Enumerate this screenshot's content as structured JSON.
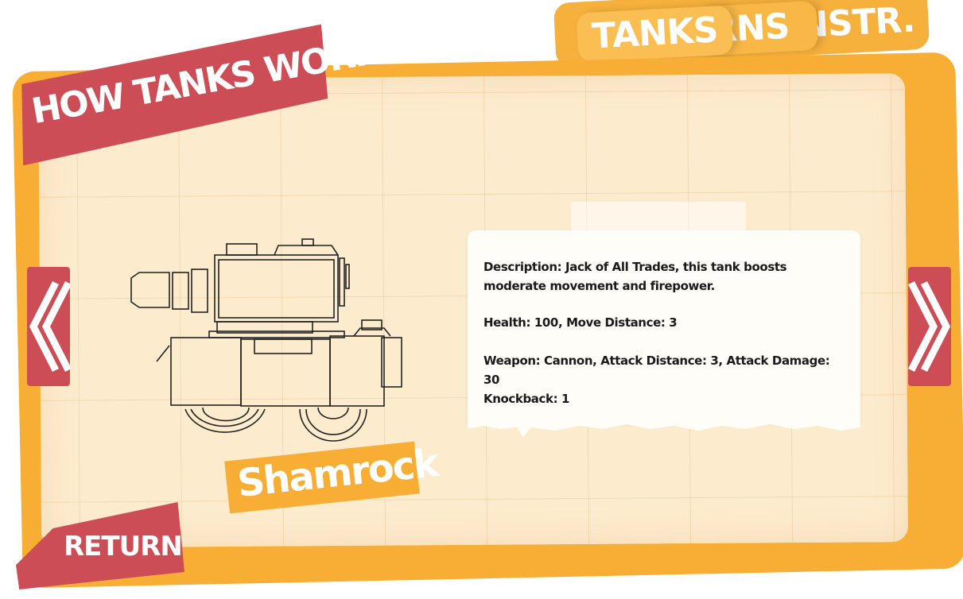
{
  "tabs": [
    {
      "label": "TANKS"
    },
    {
      "label": "RNS"
    },
    {
      "label": "NSTR."
    }
  ],
  "banner": {
    "title": "HOW TANKS WORK"
  },
  "tank": {
    "name": "Shamrock",
    "description": "Description: Jack of All Trades, this tank boosts moderate movement and firepower.",
    "health": "Health: 100, Move Distance: 3",
    "weapon": "Weapon: Cannon, Attack Distance: 3, Attack Damage: 30",
    "knockback": "Knockback: 1"
  },
  "nav": {
    "return_label": "RETURN",
    "prev_icon": "double-chevron-left-icon",
    "next_icon": "double-chevron-right-icon"
  },
  "colors": {
    "accent_orange": "#f8ad35",
    "accent_red": "#cd4d56",
    "paper": "#fdebcd"
  }
}
